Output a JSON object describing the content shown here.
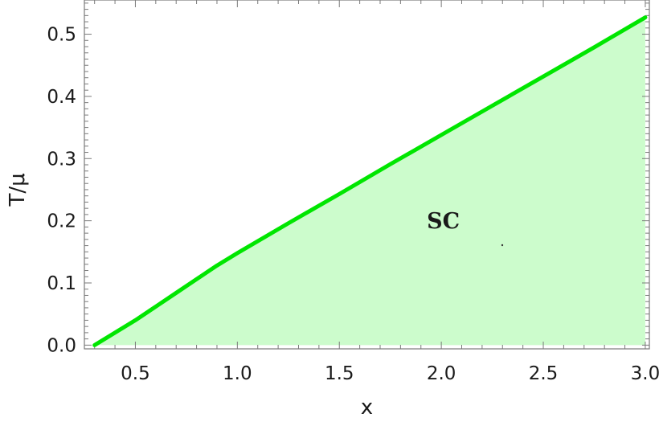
{
  "chart_data": {
    "type": "area",
    "xlabel": "x",
    "ylabel": "T/μ",
    "xlim": [
      0.25,
      3.02
    ],
    "ylim": [
      -0.006,
      0.555
    ],
    "xticks": [
      0.5,
      1.0,
      1.5,
      2.0,
      2.5,
      3.0
    ],
    "xtick_labels": [
      "0.5",
      "1.0",
      "1.5",
      "2.0",
      "2.5",
      "3.0"
    ],
    "yticks": [
      0.0,
      0.1,
      0.2,
      0.3,
      0.4,
      0.5
    ],
    "ytick_labels": [
      "0.0",
      "0.1",
      "0.2",
      "0.3",
      "0.4",
      "0.5"
    ],
    "grid": false,
    "series": [
      {
        "x": [
          0.3,
          0.4,
          0.5,
          0.6,
          0.7,
          0.8,
          0.9,
          1.0,
          1.25,
          1.5,
          1.75,
          2.0,
          2.25,
          2.5,
          2.75,
          3.0
        ],
        "y": [
          0.0,
          0.02,
          0.04,
          0.062,
          0.084,
          0.106,
          0.128,
          0.148,
          0.196,
          0.243,
          0.291,
          0.338,
          0.385,
          0.432,
          0.479,
          0.527
        ],
        "color": "#00e600",
        "fill_color": "#ccfccc"
      }
    ],
    "annotations": [
      {
        "text": "SC",
        "x": 2.0,
        "y": 0.188
      }
    ]
  }
}
